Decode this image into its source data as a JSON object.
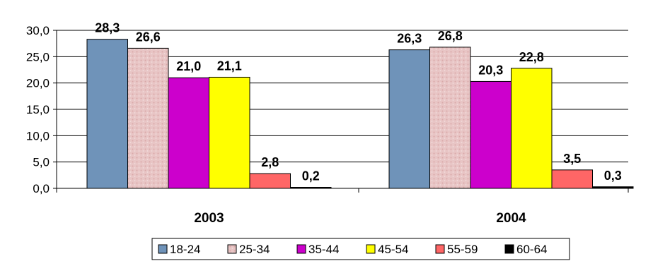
{
  "chart_data": {
    "type": "bar",
    "categories": [
      "2003",
      "2004"
    ],
    "series": [
      {
        "name": "18-24",
        "values": [
          28.3,
          26.3
        ],
        "labels": [
          "28,3",
          "26,3"
        ],
        "color": "#6f93b9"
      },
      {
        "name": "25-34",
        "values": [
          26.6,
          26.8
        ],
        "labels": [
          "26,6",
          "26,8"
        ],
        "color": "#e8c5c5"
      },
      {
        "name": "35-44",
        "values": [
          21.0,
          20.3
        ],
        "labels": [
          "21,0",
          "20,3"
        ],
        "color": "#cc00cc"
      },
      {
        "name": "45-54",
        "values": [
          21.1,
          22.8
        ],
        "labels": [
          "21,1",
          "22,8"
        ],
        "color": "#ffff00"
      },
      {
        "name": "55-59",
        "values": [
          2.8,
          3.5
        ],
        "labels": [
          "2,8",
          "3,5"
        ],
        "color": "#ff6666"
      },
      {
        "name": "60-64",
        "values": [
          0.2,
          0.3
        ],
        "labels": [
          "0,2",
          "0,3"
        ],
        "color": "#000000"
      }
    ],
    "yticks": [
      "0,0",
      "5,0",
      "10,0",
      "15,0",
      "20,0",
      "25,0",
      "30,0"
    ],
    "ylim": [
      0,
      30
    ],
    "grid": true,
    "legend": "bottom"
  }
}
